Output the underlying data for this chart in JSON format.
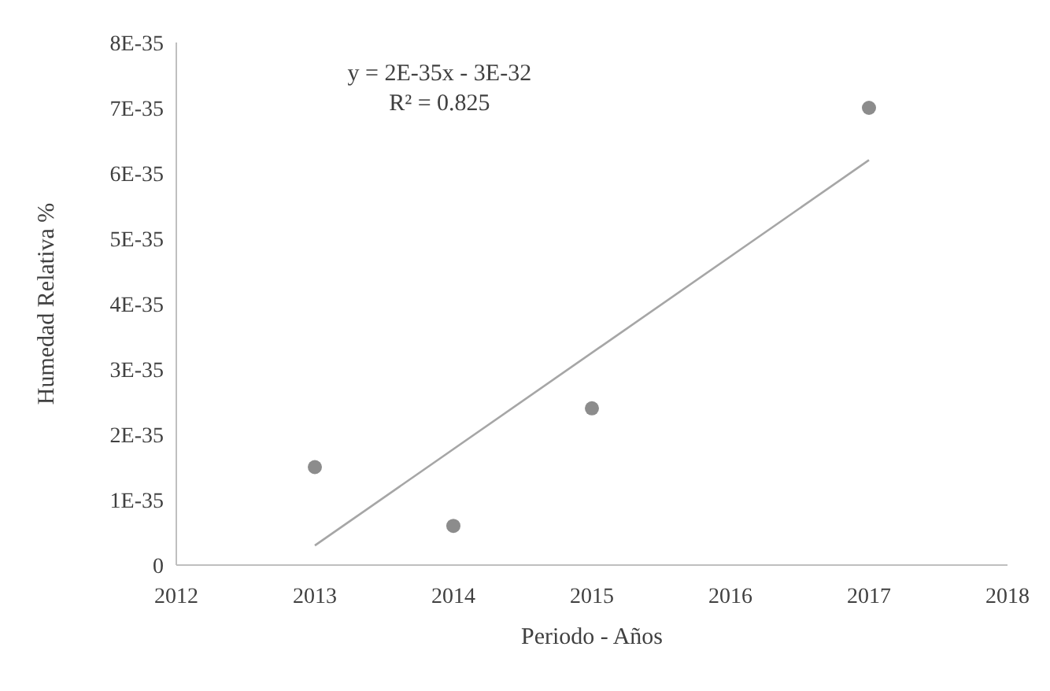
{
  "chart_data": {
    "type": "scatter",
    "xlabel": "Periodo - Años",
    "ylabel": "Humedad Relativa %",
    "x": [
      2013,
      2014,
      2015,
      2017
    ],
    "series": [
      {
        "color": "#8c8c8c",
        "values": [
          1.5e-35,
          6e-36,
          2.4e-35,
          7e-35
        ]
      },
      {
        "type": "line",
        "marker": "none",
        "color": "#a6a6a6",
        "x": [
          2013,
          2017
        ],
        "values": [
          3e-36,
          6.2e-35
        ]
      }
    ],
    "xlim": [
      2012,
      2018
    ],
    "xticks": [
      2012,
      2013,
      2014,
      2015,
      2016,
      2017,
      2018
    ],
    "ylim": [
      0,
      8e-35
    ],
    "yticks": [
      0,
      {
        "value": 1e-35,
        "label": "1E-35"
      },
      {
        "value": 2e-35,
        "label": "2E-35"
      },
      {
        "value": 3e-35,
        "label": "3E-35"
      },
      {
        "value": 4e-35,
        "label": "4E-35"
      },
      {
        "value": 5e-35,
        "label": "5E-35"
      },
      {
        "value": 6e-35,
        "label": "6E-35"
      },
      {
        "value": 7e-35,
        "label": "7E-35"
      },
      {
        "value": 8e-35,
        "label": "8E-35"
      }
    ],
    "annotations": [
      "y = 2E-35x - 3E-32",
      "R² = 0.825"
    ],
    "marker": "circle",
    "grid": false
  }
}
